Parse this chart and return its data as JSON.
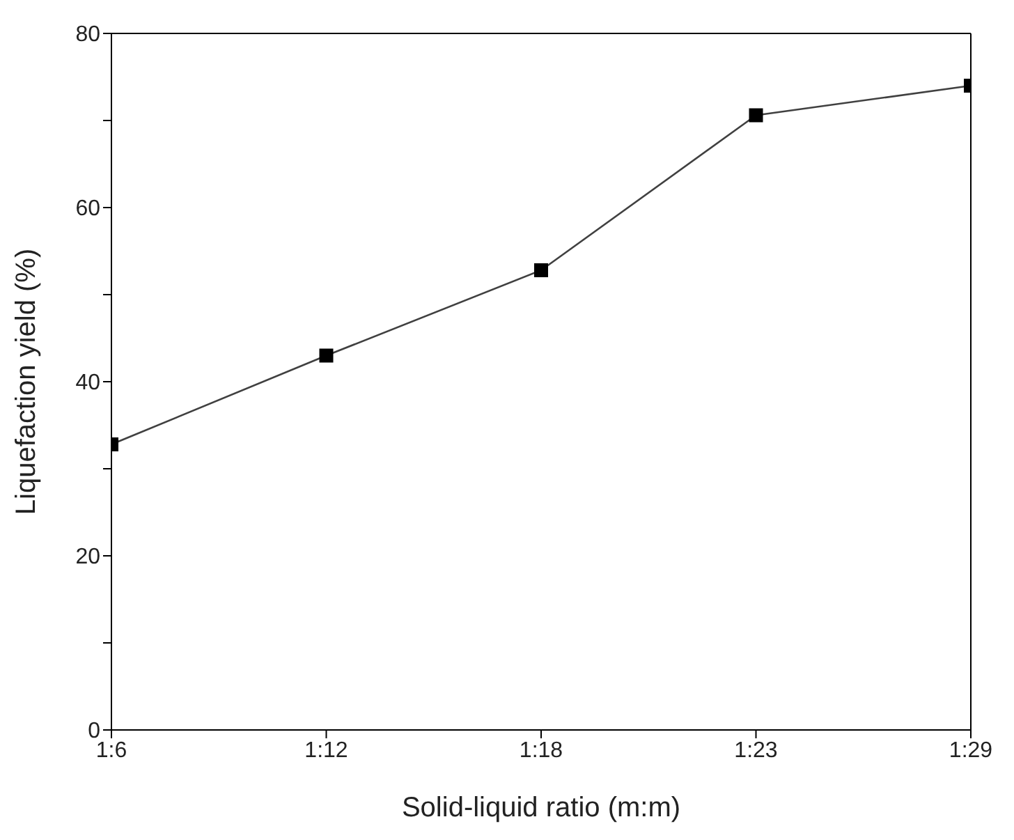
{
  "chart_data": {
    "type": "line",
    "xlabel": "Solid-liquid ratio (m:m)",
    "ylabel": "Liquefaction yield (%)",
    "categories": [
      "1:6",
      "1:12",
      "1:18",
      "1:23",
      "1:29"
    ],
    "series": [
      {
        "color": "#000000",
        "values": [
          32.8,
          43.0,
          52.8,
          70.6,
          74.0
        ]
      }
    ],
    "ylim": [
      0,
      80
    ],
    "yticks": [
      0,
      {
        "value": 10,
        "label": null
      },
      20,
      {
        "value": 30,
        "label": null
      },
      40,
      {
        "value": 50,
        "label": null
      },
      60,
      {
        "value": 70,
        "label": null
      },
      80
    ],
    "grid": false,
    "legend": false,
    "marker": "square",
    "line_style": "solid"
  }
}
